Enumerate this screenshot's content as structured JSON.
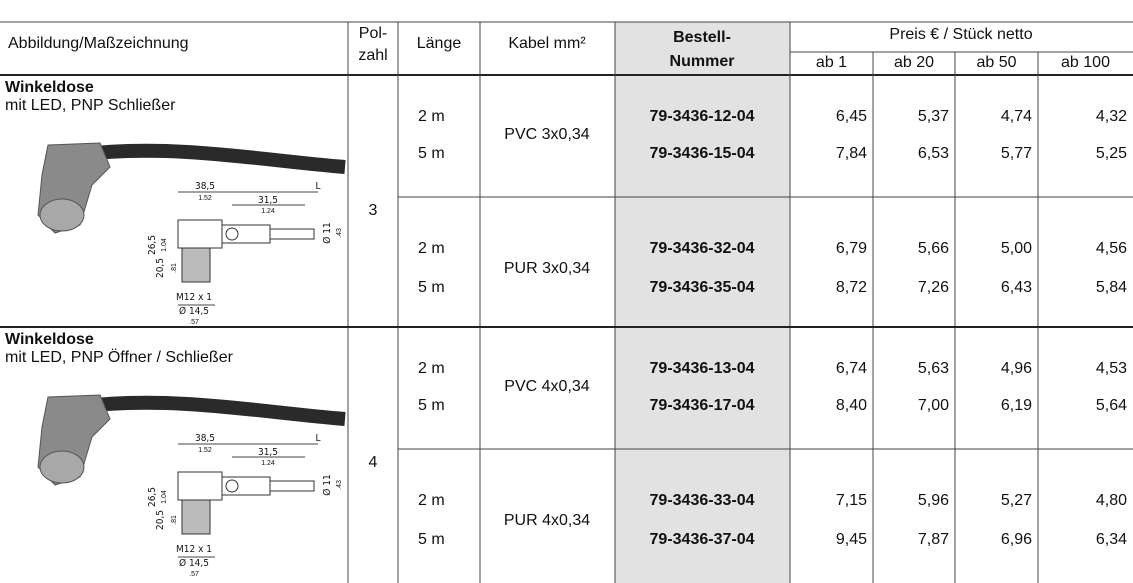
{
  "header": {
    "image": "Abbildung/Maßzeichnung",
    "poles": [
      "Pol-",
      "zahl"
    ],
    "length": "Länge",
    "cable": "Kabel mm²",
    "order": [
      "Bestell-",
      "Nummer"
    ],
    "price": "Preis € / Stück netto",
    "quantities": [
      "ab 1",
      "ab 20",
      "ab 50",
      "ab 100"
    ]
  },
  "products": [
    {
      "title": "Winkeldose",
      "subtitle": "mit LED, PNP Schließer",
      "poles": "3",
      "drawing": [
        "38,5",
        "1.52",
        "31,5",
        "1.24",
        "L",
        "26,5",
        "1.04",
        "20,5",
        ".81",
        "M12 x 1",
        "Ø 14,5",
        ".57",
        "Ø 11",
        ".43"
      ],
      "cables": [
        {
          "cable": "PVC 3x0,34",
          "rows": [
            {
              "length": "2 m",
              "order": "79-3436-12-04",
              "prices": [
                "6,45",
                "5,37",
                "4,74",
                "4,32"
              ]
            },
            {
              "length": "5 m",
              "order": "79-3436-15-04",
              "prices": [
                "7,84",
                "6,53",
                "5,77",
                "5,25"
              ]
            }
          ]
        },
        {
          "cable": "PUR 3x0,34",
          "rows": [
            {
              "length": "2 m",
              "order": "79-3436-32-04",
              "prices": [
                "6,79",
                "5,66",
                "5,00",
                "4,56"
              ]
            },
            {
              "length": "5 m",
              "order": "79-3436-35-04",
              "prices": [
                "8,72",
                "7,26",
                "6,43",
                "5,84"
              ]
            }
          ]
        }
      ]
    },
    {
      "title": "Winkeldose",
      "subtitle": "mit LED, PNP Öffner / Schließer",
      "poles": "4",
      "drawing": [
        "38,5",
        "1.52",
        "31,5",
        "1.24",
        "L",
        "26,5",
        "1.04",
        "20,5",
        ".81",
        "M12 x 1",
        "Ø 14,5",
        ".57",
        "Ø 11",
        ".43"
      ],
      "cables": [
        {
          "cable": "PVC 4x0,34",
          "rows": [
            {
              "length": "2 m",
              "order": "79-3436-13-04",
              "prices": [
                "6,74",
                "5,63",
                "4,96",
                "4,53"
              ]
            },
            {
              "length": "5 m",
              "order": "79-3436-17-04",
              "prices": [
                "8,40",
                "7,00",
                "6,19",
                "5,64"
              ]
            }
          ]
        },
        {
          "cable": "PUR 4x0,34",
          "rows": [
            {
              "length": "2 m",
              "order": "79-3436-33-04",
              "prices": [
                "7,15",
                "5,96",
                "5,27",
                "4,80"
              ]
            },
            {
              "length": "5 m",
              "order": "79-3436-37-04",
              "prices": [
                "9,45",
                "7,87",
                "6,96",
                "6,34"
              ]
            }
          ]
        }
      ]
    }
  ]
}
